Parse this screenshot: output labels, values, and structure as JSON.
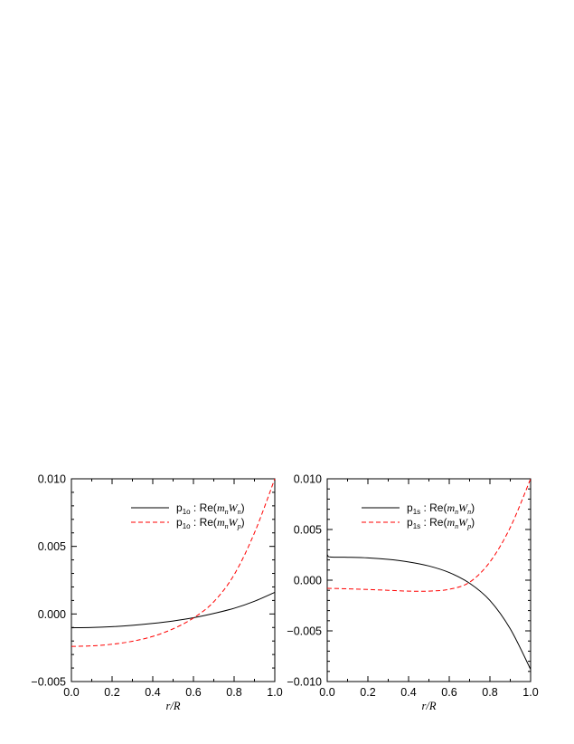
{
  "chart_data": [
    {
      "type": "line",
      "title": "",
      "xlabel": "r/R",
      "ylabel": "",
      "xlim": [
        0.0,
        1.0
      ],
      "ylim": [
        -0.005,
        0.01
      ],
      "xticks": [
        "0.0",
        "0.2",
        "0.4",
        "0.6",
        "0.8",
        "1.0"
      ],
      "yticks": [
        "−0.005",
        "0.000",
        "0.005",
        "0.010"
      ],
      "grid": false,
      "legend_position": "top-center",
      "series": [
        {
          "name": "p1o : Re(mnWn)",
          "legend_label": {
            "state": "p",
            "sub": "1o",
            "text": " : Re(",
            "mvar": "m",
            "msub": "n",
            "wvar": "W",
            "wsub": "n",
            "close": ")"
          },
          "color": "#000000",
          "dash": "solid",
          "x": [
            0.0,
            0.1,
            0.2,
            0.3,
            0.4,
            0.5,
            0.6,
            0.7,
            0.8,
            0.9,
            1.0
          ],
          "values": [
            -0.00102,
            -0.001,
            -0.00094,
            -0.00084,
            -0.0007,
            -0.00052,
            -0.00028,
            4e-05,
            0.00042,
            0.00094,
            0.0016
          ]
        },
        {
          "name": "p1o : Re(mnWp)",
          "legend_label": {
            "state": "p",
            "sub": "1o",
            "text": " : Re(",
            "mvar": "m",
            "msub": "n",
            "wvar": "W",
            "wsub": "p",
            "close": ")"
          },
          "color": "#ff0000",
          "dash": "dashed",
          "x": [
            0.0,
            0.1,
            0.2,
            0.3,
            0.4,
            0.5,
            0.6,
            0.7,
            0.8,
            0.9,
            1.0
          ],
          "values": [
            -0.0024,
            -0.00236,
            -0.00224,
            -0.00202,
            -0.00166,
            -0.0011,
            -0.0003,
            0.0009,
            0.0029,
            0.006,
            0.01
          ]
        }
      ]
    },
    {
      "type": "line",
      "title": "",
      "xlabel": "r/R",
      "ylabel": "",
      "xlim": [
        0.0,
        1.0
      ],
      "ylim": [
        -0.01,
        0.01
      ],
      "xticks": [
        "0.0",
        "0.2",
        "0.4",
        "0.6",
        "0.8",
        "1.0"
      ],
      "yticks": [
        "−0.010",
        "−0.005",
        "0.000",
        "0.005",
        "0.010"
      ],
      "grid": false,
      "legend_position": "top-center",
      "series": [
        {
          "name": "p1s : Re(mnWn)",
          "legend_label": {
            "state": "p",
            "sub": "1s",
            "text": " : Re(",
            "mvar": "m",
            "msub": "n",
            "wvar": "W",
            "wsub": "n",
            "close": ")"
          },
          "color": "#000000",
          "dash": "solid",
          "x": [
            0.0,
            0.005,
            0.02,
            0.1,
            0.2,
            0.3,
            0.4,
            0.5,
            0.6,
            0.7,
            0.8,
            0.9,
            1.0
          ],
          "values": [
            0.00255,
            0.00235,
            0.00228,
            0.00226,
            0.0022,
            0.00205,
            0.0018,
            0.0014,
            0.00075,
            -0.0003,
            -0.002,
            -0.0048,
            -0.0088
          ]
        },
        {
          "name": "p1s : Re(mnWp)",
          "legend_label": {
            "state": "p",
            "sub": "1s",
            "text": " : Re(",
            "mvar": "m",
            "msub": "n",
            "wvar": "W",
            "wsub": "p",
            "close": ")"
          },
          "color": "#ff0000",
          "dash": "dashed",
          "x": [
            0.0,
            0.1,
            0.2,
            0.3,
            0.4,
            0.5,
            0.6,
            0.7,
            0.8,
            0.9,
            1.0
          ],
          "values": [
            -0.0008,
            -0.00085,
            -0.00092,
            -0.001,
            -0.00108,
            -0.00108,
            -0.0009,
            -0.0002,
            0.0018,
            0.0052,
            0.01
          ]
        }
      ]
    }
  ]
}
